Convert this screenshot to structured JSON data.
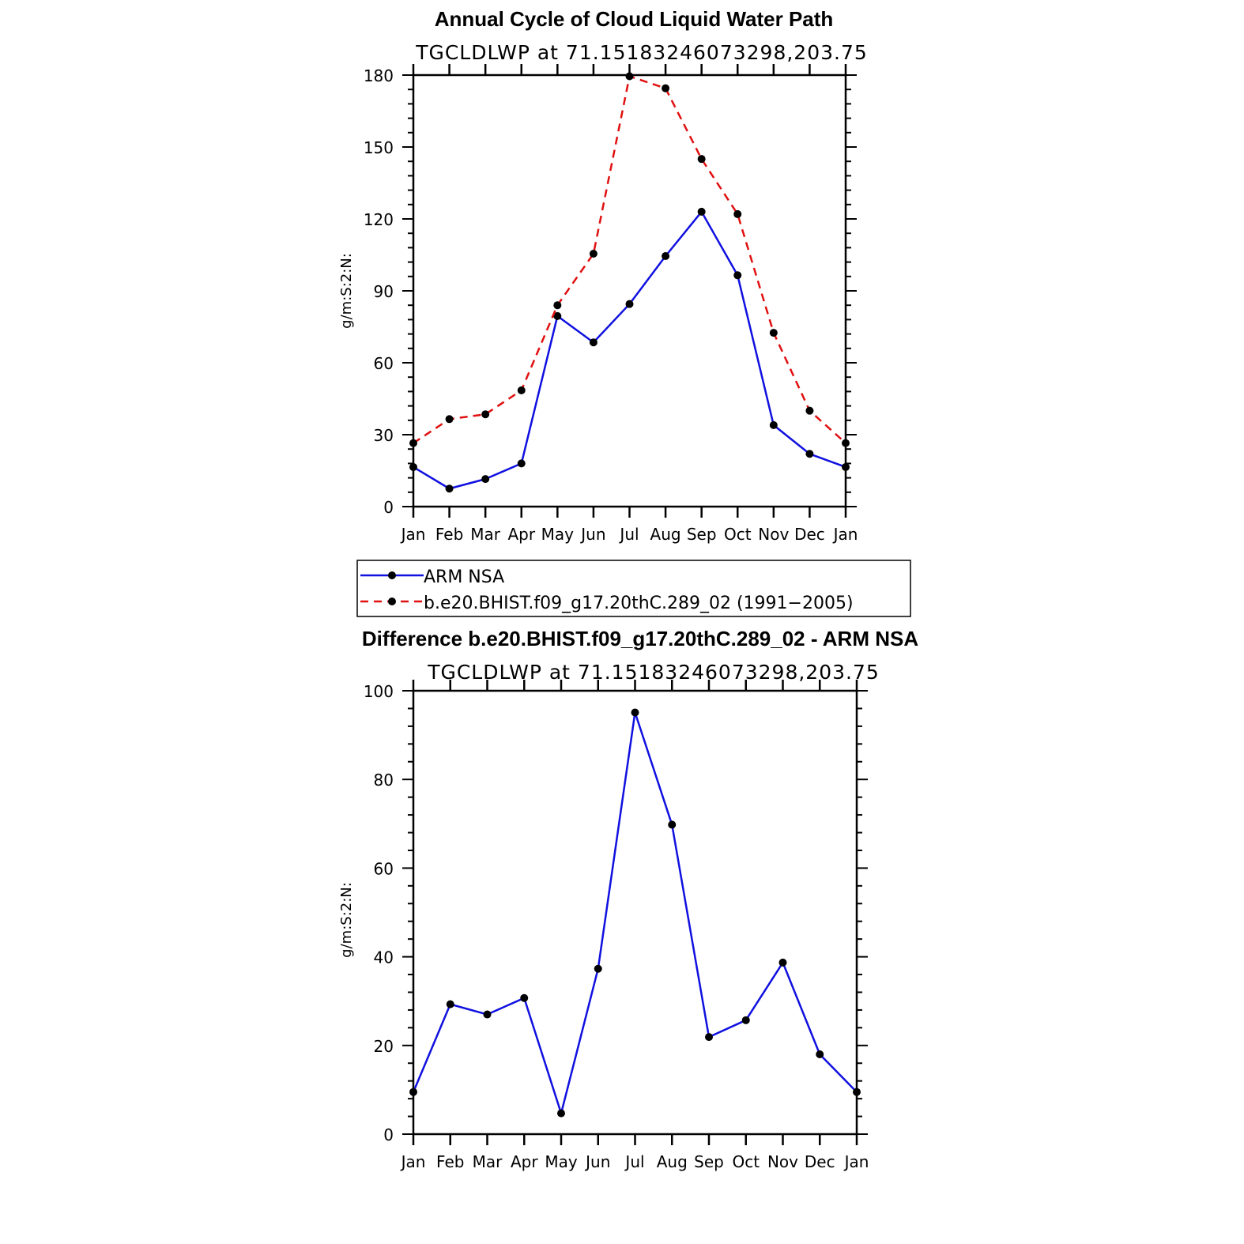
{
  "chart_data": [
    {
      "type": "line",
      "title": "Annual Cycle of Cloud Liquid Water Path",
      "subtitle": "TGCLDLWP at 71.15183246073298,203.75",
      "ylabel": "g/m:S:2:N:",
      "ylim": [
        0,
        180
      ],
      "yticks": [
        0,
        30,
        60,
        90,
        120,
        150,
        180
      ],
      "categories": [
        "Jan",
        "Feb",
        "Mar",
        "Apr",
        "May",
        "Jun",
        "Jul",
        "Aug",
        "Sep",
        "Oct",
        "Nov",
        "Dec",
        "Jan"
      ],
      "series": [
        {
          "name": "ARM NSA",
          "color": "#1010e0",
          "dash": "solid",
          "values": [
            16.5,
            7.5,
            11.5,
            18,
            79.5,
            68.5,
            84.5,
            104.5,
            123,
            96.5,
            34,
            22,
            16.5
          ]
        },
        {
          "name": "b.e20.BHIST.f09_g17.20thC.289_02 (1991-2005)",
          "color": "#e01010",
          "dash": "dashed",
          "values": [
            26.5,
            36.5,
            38.5,
            48.5,
            84,
            105.5,
            179.5,
            174.5,
            145,
            122,
            72.5,
            40,
            26.5
          ]
        }
      ],
      "legend": "below"
    },
    {
      "type": "line",
      "title": "Difference b.e20.BHIST.f09_g17.20thC.289_02 - ARM NSA",
      "subtitle": "TGCLDLWP at 71.15183246073298,203.75",
      "ylabel": "g/m:S:2:N:",
      "ylim": [
        0,
        100
      ],
      "yticks": [
        0,
        20,
        40,
        60,
        80,
        100
      ],
      "categories": [
        "Jan",
        "Feb",
        "Mar",
        "Apr",
        "May",
        "Jun",
        "Jul",
        "Aug",
        "Sep",
        "Oct",
        "Nov",
        "Dec",
        "Jan"
      ],
      "series": [
        {
          "color": "#1010e0",
          "dash": "solid",
          "values": [
            9.5,
            29.3,
            27,
            30.7,
            4.7,
            37.3,
            95.1,
            69.8,
            21.9,
            25.7,
            38.7,
            18,
            9.5
          ]
        }
      ]
    }
  ],
  "legend": {
    "items": [
      {
        "label": "ARM NSA"
      },
      {
        "label": "b.e20.BHIST.f09_g17.20thC.289_02 (1991−2005)"
      }
    ]
  }
}
